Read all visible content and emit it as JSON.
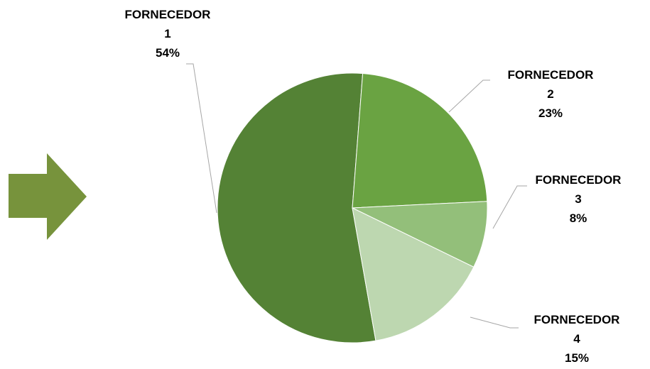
{
  "chart_data": {
    "type": "pie",
    "categories": [
      "FORNECEDOR 1",
      "FORNECEDOR 2",
      "FORNECEDOR 3",
      "FORNECEDOR 4"
    ],
    "values": [
      54,
      23,
      8,
      15
    ],
    "value_labels": [
      "54%",
      "23%",
      "8%",
      "15%"
    ],
    "colors": [
      "#548235",
      "#6aa342",
      "#93bf7a",
      "#bdd7b0"
    ]
  }
}
